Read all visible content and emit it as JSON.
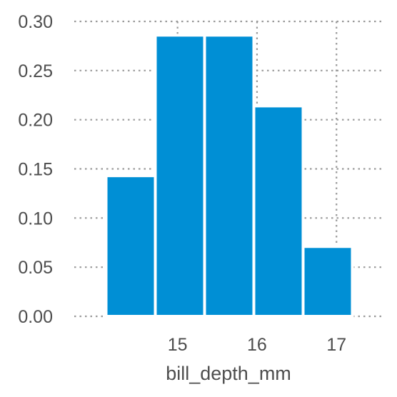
{
  "chart_data": {
    "type": "bar",
    "title": "",
    "xlabel": "bill_depth_mm",
    "ylabel": "",
    "bin_edges": [
      14.1,
      14.72,
      15.34,
      15.96,
      16.58,
      17.2
    ],
    "values": [
      0.143,
      0.286,
      0.286,
      0.214,
      0.071
    ],
    "xlim": [
      13.7,
      17.6
    ],
    "ylim": [
      0,
      0.3
    ],
    "xticks": [
      15,
      16,
      17
    ],
    "xtick_labels": [
      "15",
      "16",
      "17"
    ],
    "yticks": [
      0,
      0.05,
      0.1,
      0.15,
      0.2,
      0.25,
      0.3
    ],
    "ytick_labels": [
      "0.00",
      "0.05",
      "0.10",
      "0.15",
      "0.20",
      "0.25",
      "0.30"
    ],
    "grid": true,
    "color": "#008fd5"
  }
}
